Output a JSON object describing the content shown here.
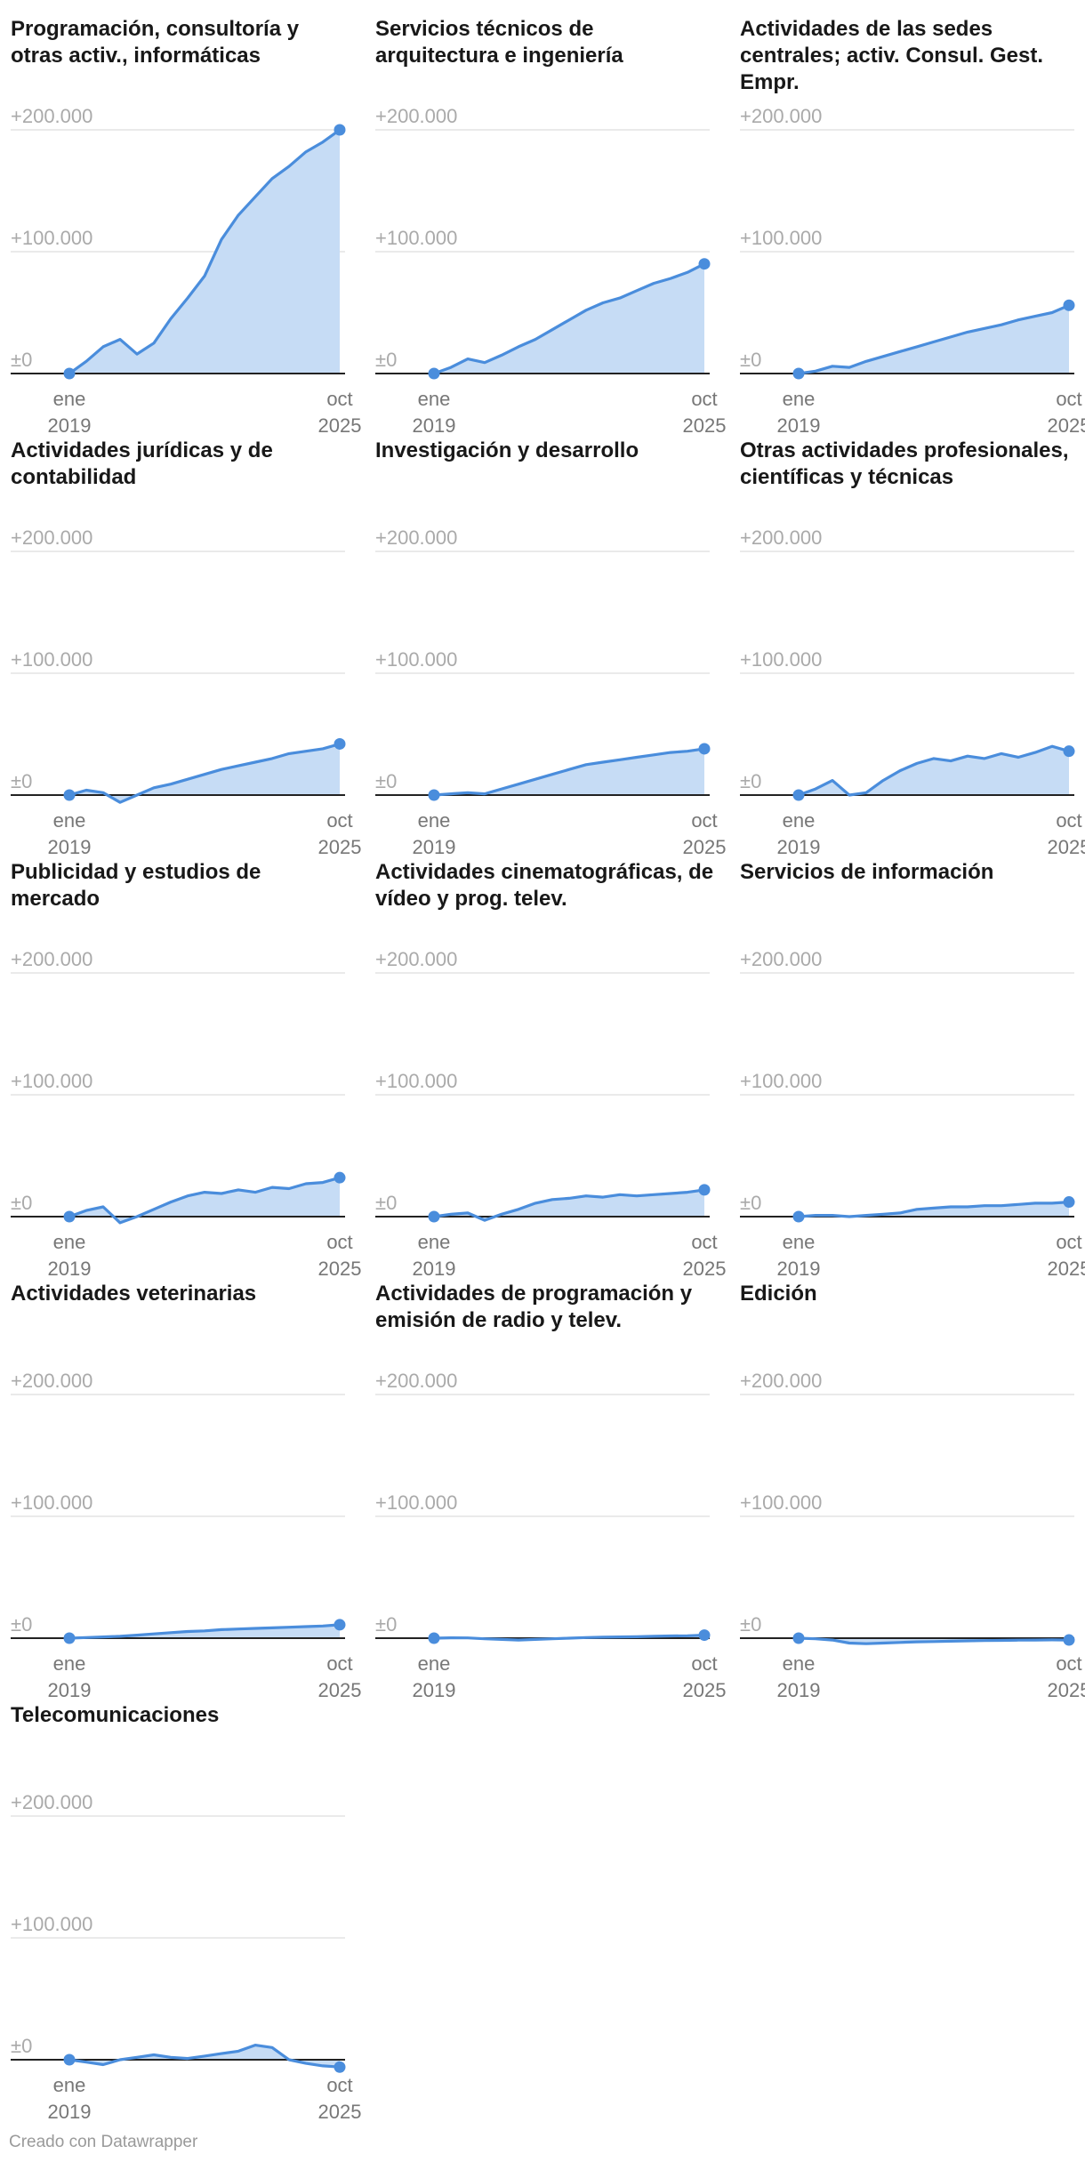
{
  "footer": "Creado con Datawrapper",
  "chart_data": {
    "type": "area",
    "layout": "small-multiples",
    "y_ticks": [
      {
        "value": 200000,
        "label": "+200.000"
      },
      {
        "value": 100000,
        "label": "+100.000"
      },
      {
        "value": 0,
        "label": "±0"
      }
    ],
    "ylim": [
      0,
      200000
    ],
    "x_start": {
      "month": "ene",
      "year": "2019"
    },
    "x_end": {
      "month": "oct",
      "year": "2025"
    },
    "grid": true,
    "colors": {
      "line": "#4a8ddc",
      "fill": "#c6dcf5",
      "baseline": "#222222",
      "grid": "#e4e4e4"
    },
    "panels": [
      {
        "title": "Programación, consultoría y otras activ., informáticas",
        "values": [
          0,
          10000,
          22000,
          28000,
          16000,
          25000,
          45000,
          62000,
          80000,
          110000,
          130000,
          145000,
          160000,
          170000,
          182000,
          190000,
          200000
        ]
      },
      {
        "title": "Servicios técnicos de arquitectura e ingeniería",
        "values": [
          0,
          5000,
          12000,
          9000,
          15000,
          22000,
          28000,
          36000,
          44000,
          52000,
          58000,
          62000,
          68000,
          74000,
          78000,
          83000,
          90000
        ]
      },
      {
        "title": "Actividades de las sedes centrales; activ. Consul. Gest. Empr.",
        "values": [
          0,
          2000,
          6000,
          5000,
          10000,
          14000,
          18000,
          22000,
          26000,
          30000,
          34000,
          37000,
          40000,
          44000,
          47000,
          50000,
          56000
        ]
      },
      {
        "title": "Actividades jurídicas y de contabilidad",
        "values": [
          0,
          4000,
          2000,
          -6000,
          0,
          6000,
          9000,
          13000,
          17000,
          21000,
          24000,
          27000,
          30000,
          34000,
          36000,
          38000,
          42000
        ]
      },
      {
        "title": "Investigación y desarrollo",
        "values": [
          0,
          1000,
          2000,
          1000,
          5000,
          9000,
          13000,
          17000,
          21000,
          25000,
          27000,
          29000,
          31000,
          33000,
          35000,
          36000,
          38000
        ]
      },
      {
        "title": "Otras actividades profesionales, científicas y técnicas",
        "values": [
          0,
          5000,
          12000,
          0,
          2000,
          12000,
          20000,
          26000,
          30000,
          28000,
          32000,
          30000,
          34000,
          31000,
          35000,
          40000,
          36000
        ]
      },
      {
        "title": "Publicidad y estudios de mercado",
        "values": [
          0,
          5000,
          8000,
          -5000,
          0,
          6000,
          12000,
          17000,
          20000,
          19000,
          22000,
          20000,
          24000,
          23000,
          27000,
          28000,
          32000
        ]
      },
      {
        "title": "Actividades cinematográficas, de vídeo y prog. telev.",
        "values": [
          0,
          2000,
          3000,
          -3000,
          2000,
          6000,
          11000,
          14000,
          15000,
          17000,
          16000,
          18000,
          17000,
          18000,
          19000,
          20000,
          22000
        ]
      },
      {
        "title": "Servicios de información",
        "values": [
          0,
          1000,
          1000,
          0,
          1000,
          2000,
          3000,
          6000,
          7000,
          8000,
          8000,
          9000,
          9000,
          10000,
          11000,
          11000,
          12000
        ]
      },
      {
        "title": "Actividades veterinarias",
        "values": [
          0,
          500,
          1000,
          1500,
          2500,
          3500,
          4500,
          5500,
          6000,
          7000,
          7500,
          8000,
          8500,
          9000,
          9500,
          10000,
          11000
        ]
      },
      {
        "title": "Actividades de programación y emisión de radio y telev.",
        "values": [
          0,
          300,
          200,
          -500,
          -1000,
          -1500,
          -1000,
          -500,
          0,
          500,
          800,
          1000,
          1200,
          1500,
          1800,
          2000,
          2500
        ]
      },
      {
        "title": "Edición",
        "values": [
          0,
          -500,
          -1500,
          -4000,
          -4500,
          -4000,
          -3500,
          -3000,
          -2800,
          -2500,
          -2200,
          -2000,
          -1800,
          -1600,
          -1500,
          -1400,
          -1500
        ]
      },
      {
        "title": "Telecomunicaciones",
        "values": [
          0,
          -2000,
          -4000,
          0,
          2000,
          4000,
          2000,
          1000,
          3000,
          5000,
          7000,
          12000,
          10000,
          0,
          -3000,
          -5000,
          -6000
        ]
      }
    ]
  }
}
